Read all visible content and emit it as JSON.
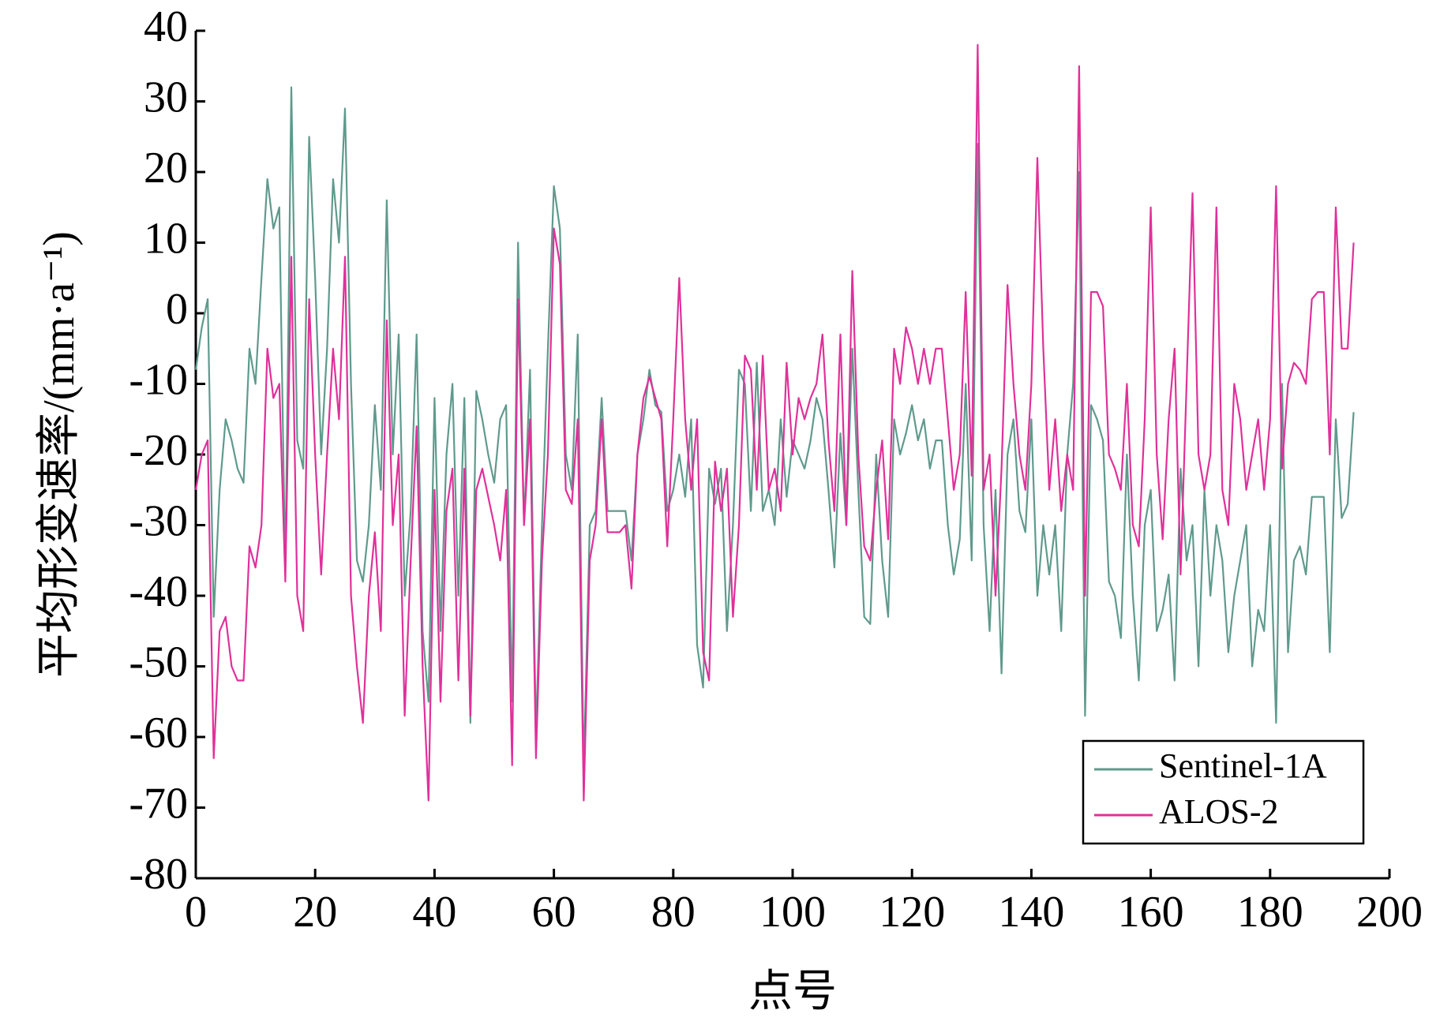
{
  "chart_data": {
    "type": "line",
    "xlabel": "点号",
    "ylabel": "平均形变速率/(mm·a⁻¹)",
    "xlim": [
      0,
      200
    ],
    "xticks": [
      0,
      20,
      40,
      60,
      80,
      100,
      120,
      140,
      160,
      180,
      200
    ],
    "ylim": [
      -80,
      40
    ],
    "yticks": [
      -80,
      -70,
      -60,
      -50,
      -40,
      -30,
      -20,
      -10,
      0,
      10,
      20,
      30,
      40
    ],
    "legend": "lower right",
    "x": [
      0,
      1,
      2,
      3,
      4,
      5,
      6,
      7,
      8,
      9,
      10,
      11,
      12,
      13,
      14,
      15,
      16,
      17,
      18,
      19,
      20,
      21,
      22,
      23,
      24,
      25,
      26,
      27,
      28,
      29,
      30,
      31,
      32,
      33,
      34,
      35,
      36,
      37,
      38,
      39,
      40,
      41,
      42,
      43,
      44,
      45,
      46,
      47,
      48,
      49,
      50,
      51,
      52,
      53,
      54,
      55,
      56,
      57,
      58,
      59,
      60,
      61,
      62,
      63,
      64,
      65,
      66,
      67,
      68,
      69,
      70,
      71,
      72,
      73,
      74,
      75,
      76,
      77,
      78,
      79,
      80,
      81,
      82,
      83,
      84,
      85,
      86,
      87,
      88,
      89,
      90,
      91,
      92,
      93,
      94,
      95,
      96,
      97,
      98,
      99,
      100,
      101,
      102,
      103,
      104,
      105,
      106,
      107,
      108,
      109,
      110,
      111,
      112,
      113,
      114,
      115,
      116,
      117,
      118,
      119,
      120,
      121,
      122,
      123,
      124,
      125,
      126,
      127,
      128,
      129,
      130,
      131,
      132,
      133,
      134,
      135,
      136,
      137,
      138,
      139,
      140,
      141,
      142,
      143,
      144,
      145,
      146,
      147,
      148,
      149,
      150,
      151,
      152,
      153,
      154,
      155,
      156,
      157,
      158,
      159,
      160,
      161,
      162,
      163,
      164,
      165,
      166,
      167,
      168,
      169,
      170,
      171,
      172,
      173,
      174,
      175,
      176,
      177,
      178,
      179,
      180,
      181,
      182,
      183,
      184,
      185,
      186,
      187,
      188,
      189,
      190,
      191,
      192,
      193,
      194
    ],
    "series": [
      {
        "name": "Sentinel-1A",
        "color": "#5f9a8c",
        "values": [
          -8,
          -2,
          2,
          -43,
          -25,
          -15,
          -18,
          -22,
          -24,
          -5,
          -10,
          5,
          19,
          12,
          15,
          -37,
          32,
          -18,
          -22,
          25,
          5,
          -20,
          -5,
          19,
          10,
          29,
          -10,
          -35,
          -38,
          -30,
          -13,
          -25,
          16,
          -20,
          -3,
          -40,
          -28,
          -3,
          -45,
          -55,
          -12,
          -45,
          -20,
          -10,
          -40,
          -12,
          -58,
          -11,
          -15,
          -20,
          -24,
          -15,
          -13,
          -55,
          10,
          -30,
          -8,
          -60,
          -30,
          -5,
          18,
          12,
          -20,
          -25,
          -3,
          -65,
          -30,
          -28,
          -12,
          -28,
          -28,
          -28,
          -28,
          -35,
          -20,
          -15,
          -8,
          -13,
          -14,
          -28,
          -25,
          -20,
          -26,
          -15,
          -47,
          -53,
          -22,
          -27,
          -22,
          -45,
          -30,
          -8,
          -10,
          -28,
          -7,
          -28,
          -25,
          -30,
          -15,
          -26,
          -18,
          -20,
          -22,
          -18,
          -12,
          -15,
          -25,
          -36,
          -17,
          -30,
          -5,
          -25,
          -43,
          -44,
          -20,
          -35,
          -43,
          -15,
          -20,
          -17,
          -13,
          -18,
          -15,
          -22,
          -18,
          -18,
          -30,
          -37,
          -32,
          -10,
          -35,
          24,
          -30,
          -45,
          -25,
          -51,
          -20,
          -15,
          -28,
          -31,
          -15,
          -40,
          -30,
          -37,
          -30,
          -45,
          -20,
          -10,
          20,
          -57,
          -13,
          -15,
          -18,
          -38,
          -40,
          -46,
          -20,
          -40,
          -52,
          -30,
          -25,
          -45,
          -42,
          -37,
          -52,
          -22,
          -35,
          -30,
          -50,
          -25,
          -40,
          -30,
          -35,
          -48,
          -40,
          -35,
          -30,
          -50,
          -42,
          -45,
          -30,
          -58,
          -10,
          -48,
          -35,
          -33,
          -37,
          -26,
          -26,
          -26,
          -48,
          -15,
          -29,
          -27,
          -14
        ]
      },
      {
        "name": "ALOS-2",
        "color": "#e0309a",
        "values": [
          -25,
          -20,
          -18,
          -63,
          -45,
          -43,
          -50,
          -52,
          -52,
          -33,
          -36,
          -30,
          -5,
          -12,
          -10,
          -38,
          8,
          -40,
          -45,
          2,
          -20,
          -37,
          -20,
          -5,
          -15,
          8,
          -40,
          -50,
          -58,
          -40,
          -31,
          -45,
          -1,
          -30,
          -20,
          -57,
          -35,
          -16,
          -50,
          -69,
          -25,
          -55,
          -28,
          -22,
          -52,
          -22,
          -57,
          -25,
          -22,
          -26,
          -30,
          -35,
          -25,
          -64,
          2,
          -30,
          -15,
          -63,
          -35,
          -20,
          12,
          7,
          -25,
          -27,
          -15,
          -69,
          -35,
          -30,
          -15,
          -31,
          -31,
          -31,
          -30,
          -39,
          -20,
          -12,
          -9,
          -12,
          -15,
          -33,
          -15,
          5,
          -15,
          -25,
          -15,
          -48,
          -52,
          -21,
          -28,
          -22,
          -43,
          -30,
          -6,
          -8,
          -25,
          -6,
          -25,
          -22,
          -28,
          -7,
          -20,
          -12,
          -15,
          -12,
          -10,
          -3,
          -18,
          -28,
          -3,
          -30,
          6,
          -20,
          -33,
          -35,
          -25,
          -18,
          -32,
          -5,
          -10,
          -2,
          -5,
          -10,
          -5,
          -10,
          -5,
          -5,
          -15,
          -25,
          -20,
          3,
          -23,
          38,
          -25,
          -20,
          -40,
          -22,
          4,
          -10,
          -20,
          -25,
          -10,
          22,
          -5,
          -25,
          -15,
          -28,
          -20,
          -25,
          35,
          -40,
          3,
          3,
          1,
          -20,
          -22,
          -25,
          -10,
          -30,
          -33,
          -15,
          15,
          -20,
          -32,
          -15,
          -5,
          -37,
          -10,
          17,
          -20,
          -25,
          -20,
          15,
          -25,
          -30,
          -10,
          -15,
          -25,
          -20,
          -15,
          -25,
          -15,
          18,
          -22,
          -10,
          -7,
          -8,
          -10,
          2,
          3,
          3,
          -20,
          15,
          -5,
          -5,
          10
        ]
      }
    ]
  }
}
